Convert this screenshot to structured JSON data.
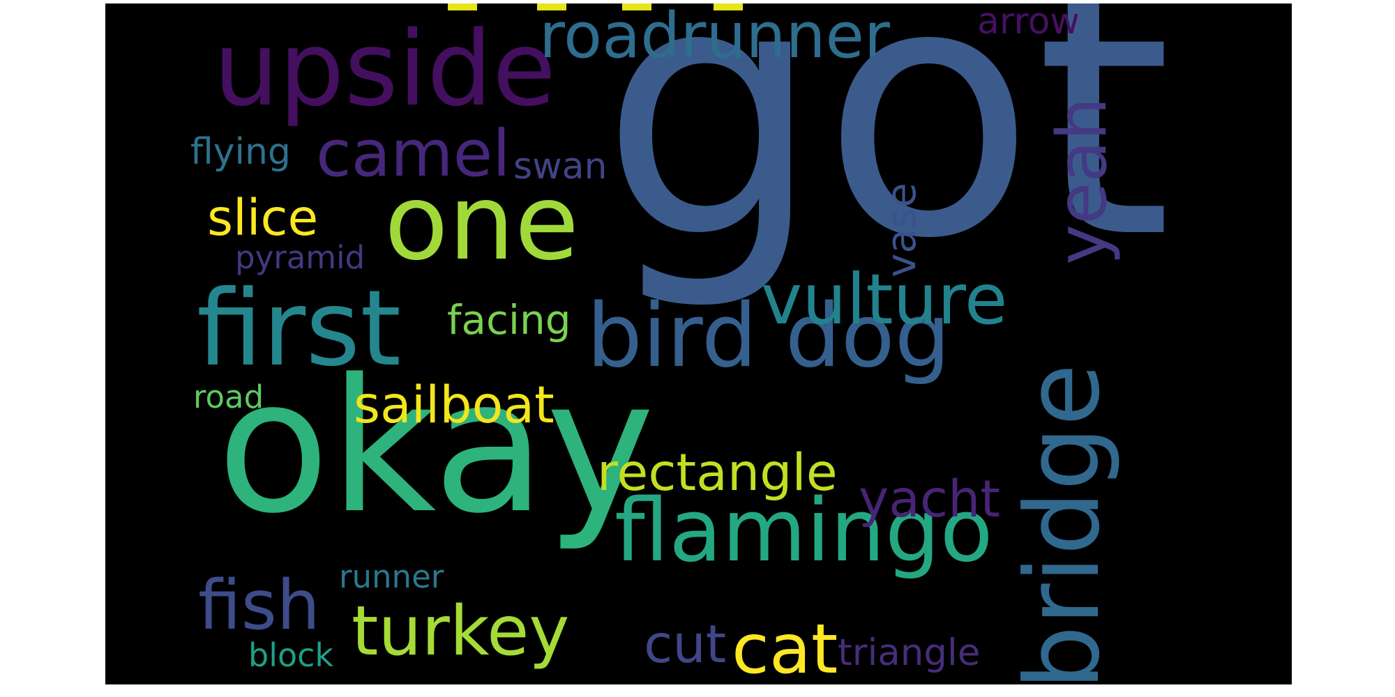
{
  "wordcloud": {
    "words": {
      "got": "got",
      "okay": "okay",
      "upside": "upside",
      "one": "one",
      "first": "first",
      "roadrunner": "roadrunner",
      "bird_dog": "bird dog",
      "bridge": "bridge",
      "flamingo": "flamingo",
      "vulture": "vulture",
      "camel": "camel",
      "yeah": "yeah",
      "turkey": "turkey",
      "fish": "fish",
      "cat": "cat",
      "sailboat": "sailboat",
      "rectangle": "rectangle",
      "yacht": "yacht",
      "slice": "slice",
      "facing": "facing",
      "vase": "vase",
      "cut": "cut",
      "triangle": "triangle",
      "flying": "flying",
      "swan": "swan",
      "pyramid": "pyramid",
      "arrow": "arrow",
      "road": "road",
      "runner": "runner",
      "block": "block"
    },
    "colors": {
      "background": "#000000",
      "got": "#3b5b8c",
      "okay": "#2db37b",
      "upside": "#440f5e",
      "one": "#a2d93a",
      "first": "#25868e",
      "roadrunner": "#2e6d8e",
      "bird_dog": "#355f8d",
      "bridge": "#31688e",
      "flamingo": "#24a884",
      "vulture": "#22838e",
      "camel": "#46277b",
      "yeah": "#443983",
      "turkey": "#a5db36",
      "fish": "#3e4c8a",
      "cat": "#fde725",
      "sailboat": "#f2e51d",
      "rectangle": "#c2df23",
      "yacht": "#482475",
      "slice": "#fbe723",
      "facing": "#7ad151",
      "vase": "#3a528b",
      "cut": "#404688",
      "triangle": "#472d7b",
      "flying": "#2c728e",
      "swan": "#414487",
      "pyramid": "#453882",
      "arrow": "#471063",
      "road": "#5ec962",
      "runner": "#2a788e",
      "block": "#1fa088",
      "top_dashes": "#e6e41a"
    }
  }
}
